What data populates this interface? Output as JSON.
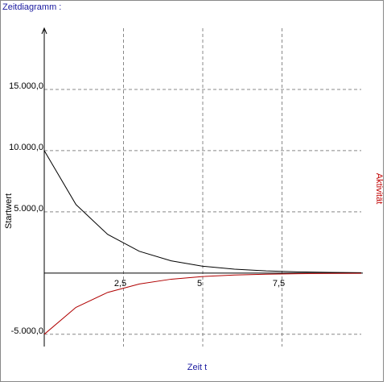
{
  "chart_data": {
    "type": "line",
    "title": "Zeitdiagramm :",
    "x_label": "Zeit t",
    "y_label": "Startwert",
    "y_label_right": "Aktivität",
    "x": [
      0,
      1,
      2,
      3,
      4,
      5,
      6,
      7,
      8,
      9,
      10
    ],
    "series": [
      {
        "color": "#000000",
        "values": [
          10000,
          5600,
          3160,
          1780,
          1000,
          560,
          320,
          180,
          100,
          56,
          32
        ]
      },
      {
        "color": "#b00000",
        "values": [
          -5000,
          -2800,
          -1580,
          -890,
          -500,
          -280,
          -160,
          -90,
          -50,
          -28,
          -16
        ]
      }
    ],
    "xlim": [
      0,
      10
    ],
    "ylim": [
      -6000,
      20000
    ],
    "xticks": [
      {
        "value": 2.5,
        "label": "2,5"
      },
      5,
      {
        "value": 7.5,
        "label": "7,5"
      }
    ],
    "yticks": [
      {
        "value": -5000,
        "label": "-5.000,0"
      },
      {
        "value": 5000,
        "label": "5.000,0"
      },
      {
        "value": 10000,
        "label": "10.000,0"
      },
      {
        "value": 15000,
        "label": "15.000,0"
      }
    ],
    "grid": true
  }
}
